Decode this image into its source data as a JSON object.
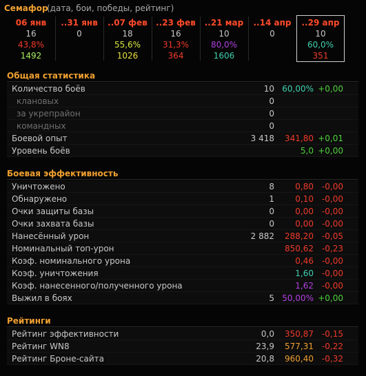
{
  "header": {
    "title": "Семафор",
    "subtitle": "(дата, бои, победы, рейтинг)"
  },
  "columns": [
    {
      "date": "06 янв",
      "battles": "16",
      "wins": "43,8%",
      "wins_color": "#f03a2a",
      "rating": "1492",
      "rating_color": "#a8f060"
    },
    {
      "date": "..31 янв",
      "battles": "0"
    },
    {
      "date": "..07 фев",
      "battles": "18",
      "wins": "55,6%",
      "wins_color": "#d8e840",
      "rating": "1026",
      "rating_color": "#e8e040"
    },
    {
      "date": "..23 фев",
      "battles": "16",
      "wins": "31,3%",
      "wins_color": "#f03a2a",
      "rating": "364",
      "rating_color": "#f03a2a"
    },
    {
      "date": "..21 мар",
      "battles": "10",
      "wins": "80,0%",
      "wins_color": "#b040e0",
      "rating": "1606",
      "rating_color": "#40d0b0"
    },
    {
      "date": "..14 апр",
      "battles": "0"
    },
    {
      "date": "..29 апр",
      "battles": "10",
      "wins": "60,0%",
      "wins_color": "#40d0b0",
      "rating": "351",
      "rating_color": "#f03a2a",
      "selected": true
    }
  ],
  "sections": [
    {
      "title": "Общая статистика",
      "rows": [
        {
          "label": "Количество боёв",
          "value": "10",
          "avg": "60,00%",
          "avg_color": "#40d0b0",
          "delta": "+0,00",
          "delta_color": "#4fd13c"
        },
        {
          "label": "клановых",
          "value": "0",
          "indent": true
        },
        {
          "label": "за укрепрайон",
          "value": "0",
          "indent": true
        },
        {
          "label": "командных",
          "value": "0",
          "indent": true
        },
        {
          "label": "Боевой опыт",
          "value": "3 418",
          "avg": "341,80",
          "avg_color": "#f03a2a",
          "delta": "+0,01",
          "delta_color": "#4fd13c"
        },
        {
          "label": "Уровень боёв",
          "avg": "5,0",
          "avg_color": "#4fd13c",
          "delta": "+0,00",
          "delta_color": "#4fd13c"
        }
      ]
    },
    {
      "title": "Боевая эффективность",
      "rows": [
        {
          "label": "Уничтожено",
          "value": "8",
          "avg": "0,80",
          "avg_color": "#f03a2a",
          "delta": "-0,00",
          "delta_color": "#f03a2a"
        },
        {
          "label": "Обнаружено",
          "value": "1",
          "avg": "0,10",
          "avg_color": "#f03a2a",
          "delta": "-0,00",
          "delta_color": "#f03a2a"
        },
        {
          "label": "Очки защиты базы",
          "value": "0",
          "avg": "0,00",
          "avg_color": "#f03a2a",
          "delta": "-0,00",
          "delta_color": "#f03a2a"
        },
        {
          "label": "Очки захвата базы",
          "value": "0",
          "avg": "0,00",
          "avg_color": "#f03a2a",
          "delta": "-0,00",
          "delta_color": "#f03a2a"
        },
        {
          "label": "Нанесённый урон",
          "value": "2 882",
          "avg": "288,20",
          "avg_color": "#f03a2a",
          "delta": "-0,05",
          "delta_color": "#f03a2a"
        },
        {
          "label": "Номинальный топ-урон",
          "avg": "850,62",
          "avg_color": "#f03a2a",
          "delta": "-0,23",
          "delta_color": "#f03a2a"
        },
        {
          "label": "Коэф. номинального урона",
          "avg": "0,46",
          "avg_color": "#f03a2a",
          "delta": "-0,00",
          "delta_color": "#f03a2a"
        },
        {
          "label": "Коэф. уничтожения",
          "avg": "1,60",
          "avg_color": "#40d0b0",
          "delta": "-0,00",
          "delta_color": "#f03a2a"
        },
        {
          "label": "Коэф. нанесенного/полученного урона",
          "avg": "1,62",
          "avg_color": "#b040e0",
          "delta": "-0,00",
          "delta_color": "#f03a2a"
        },
        {
          "label": "Выжил в боях",
          "value": "5",
          "avg": "50,00%",
          "avg_color": "#b040e0",
          "delta": "+0,00",
          "delta_color": "#4fd13c"
        }
      ]
    },
    {
      "title": "Рейтинги",
      "rows": [
        {
          "label": "Рейтинг эффективности",
          "value": "0,0",
          "avg": "350,87",
          "avg_color": "#f03a2a",
          "delta": "-0,15",
          "delta_color": "#f03a2a"
        },
        {
          "label": "Рейтинг WN8",
          "value": "23,9",
          "avg": "577,31",
          "avg_color": "#f0a030",
          "delta": "-0,22",
          "delta_color": "#f03a2a"
        },
        {
          "label": "Рейтинг Броне-сайта",
          "value": "20,8",
          "avg": "960,40",
          "avg_color": "#f0a030",
          "delta": "-0,32",
          "delta_color": "#f03a2a"
        }
      ]
    }
  ]
}
